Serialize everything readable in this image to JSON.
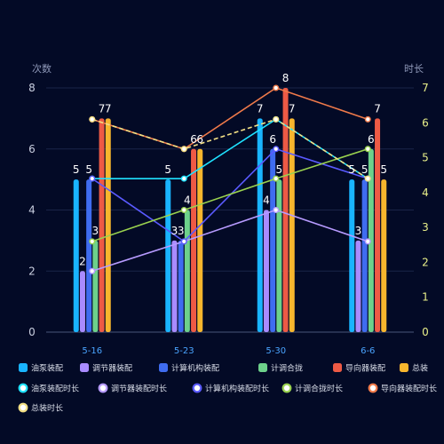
{
  "chart_data": {
    "type": "bar",
    "categories": [
      "5-16",
      "5-23",
      "5-30",
      "6-6"
    ],
    "left_axis": {
      "label": "次数",
      "ticks": [
        "0",
        "2",
        "4",
        "6",
        "8"
      ],
      "range": [
        0,
        8
      ]
    },
    "right_axis": {
      "label": "时长",
      "ticks": [
        "0",
        "1",
        "2",
        "3",
        "4",
        "5",
        "6",
        "7"
      ],
      "range": [
        0,
        7
      ]
    },
    "bar_series": [
      {
        "name": "油泵装配",
        "color": "#19b4ff",
        "values": [
          5,
          5,
          7,
          5
        ]
      },
      {
        "name": "调节器装配",
        "color": "#a98bff",
        "values": [
          2,
          3,
          4,
          3
        ]
      },
      {
        "name": "计算机构装配",
        "color": "#3f6cf0",
        "values": [
          5,
          3,
          6,
          5
        ]
      },
      {
        "name": "计调合拢",
        "color": "#6dd18b",
        "values": [
          3,
          4,
          5,
          6
        ]
      },
      {
        "name": "导向器装配",
        "color": "#ee5a45",
        "values": [
          7,
          6,
          8,
          7
        ]
      },
      {
        "name": "总装",
        "color": "#f8b62d",
        "values": [
          7,
          6,
          7,
          5
        ]
      }
    ],
    "line_series": [
      {
        "name": "油泵装配时长",
        "color": "#1fe2ff",
        "dashed": false,
        "values": [
          4.4,
          4.4,
          6.1,
          4.4
        ]
      },
      {
        "name": "调节器装配时长",
        "color": "#b79bff",
        "dashed": false,
        "values": [
          1.75,
          2.6,
          3.5,
          2.6
        ]
      },
      {
        "name": "计算机构装配时长",
        "color": "#5a5aff",
        "dashed": false,
        "values": [
          4.4,
          2.6,
          5.25,
          4.4
        ]
      },
      {
        "name": "计调合拢时长",
        "color": "#9ad24f",
        "dashed": false,
        "values": [
          2.6,
          3.5,
          4.4,
          5.25
        ]
      },
      {
        "name": "导向器装配时长",
        "color": "#f07a4a",
        "dashed": false,
        "values": [
          6.1,
          5.25,
          7.0,
          6.1
        ]
      },
      {
        "name": "总装时长",
        "color": "#f2df84",
        "dashed": true,
        "values": [
          6.1,
          5.25,
          6.1,
          4.4
        ]
      }
    ],
    "grid": true,
    "legend_position": "bottom"
  }
}
